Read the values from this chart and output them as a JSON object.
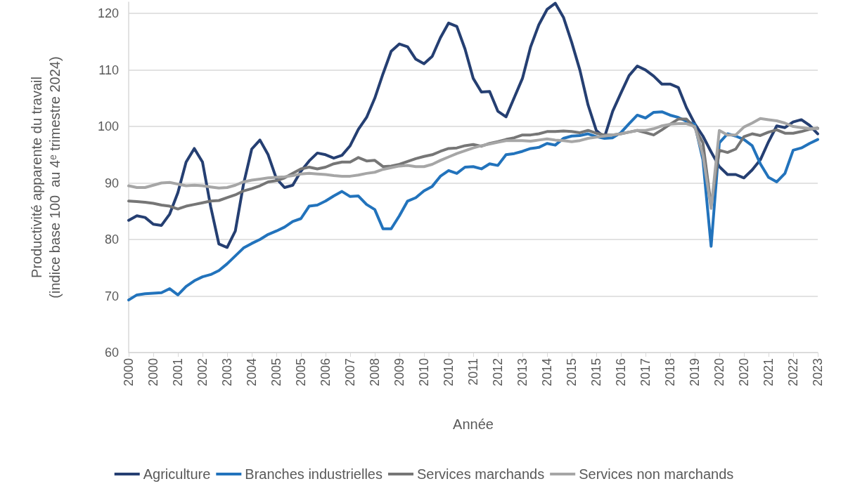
{
  "chart_data": {
    "type": "line",
    "xlabel": "Année",
    "ylabel": "Productivité apparente du travail\n(indice base 100  au 4ᵉ trimestre 2024)",
    "categories": [
      "2000",
      null,
      null,
      "2000",
      null,
      null,
      "2001",
      null,
      null,
      "2002",
      null,
      null,
      "2003",
      null,
      null,
      "2004",
      null,
      null,
      "2005",
      null,
      null,
      "2005",
      null,
      null,
      "2006",
      null,
      null,
      "2007",
      null,
      null,
      "2008",
      null,
      null,
      "2009",
      null,
      null,
      "2010",
      null,
      null,
      "2010",
      null,
      null,
      "2011",
      null,
      null,
      "2012",
      null,
      null,
      "2013",
      null,
      null,
      "2014",
      null,
      null,
      "2015",
      null,
      null,
      "2015",
      null,
      null,
      "2016",
      null,
      null,
      "2017",
      null,
      null,
      "2018",
      null,
      null,
      "2019",
      null,
      null,
      "2020",
      null,
      null,
      "2020",
      null,
      null,
      "2021",
      null,
      null,
      "2022",
      null,
      null,
      "2023"
    ],
    "series": [
      {
        "name": "Agriculture",
        "color": "#253f72",
        "values": [
          83.4,
          84.2,
          83.9,
          82.7,
          82.5,
          84.5,
          88.3,
          93.7,
          96.1,
          93.7,
          85.8,
          79.2,
          78.6,
          81.5,
          89.8,
          96.0,
          97.6,
          95.0,
          90.8,
          89.2,
          89.6,
          92.1,
          93.9,
          95.3,
          95.0,
          94.4,
          94.9,
          96.6,
          99.5,
          101.6,
          105.0,
          109.3,
          113.3,
          114.6,
          114.1,
          111.9,
          111.1,
          112.4,
          115.7,
          118.3,
          117.7,
          113.7,
          108.5,
          106.1,
          106.2,
          102.7,
          101.7,
          105.1,
          108.5,
          114.1,
          118.0,
          120.7,
          121.8,
          119.3,
          114.9,
          110.0,
          103.8,
          99.3,
          98.1,
          102.7,
          105.9,
          109.0,
          110.7,
          110.0,
          108.9,
          107.5,
          107.5,
          106.9,
          103.3,
          100.5,
          98.3,
          95.5,
          92.9,
          91.5,
          91.5,
          90.9,
          92.3,
          94.1,
          97.3,
          100.1,
          99.8,
          100.8,
          101.2,
          100.2,
          98.7
        ]
      },
      {
        "name": "Branches industrielles",
        "color": "#2273bc",
        "values": [
          69.3,
          70.2,
          70.4,
          70.5,
          70.6,
          71.3,
          70.2,
          71.7,
          72.7,
          73.4,
          73.8,
          74.5,
          75.7,
          77.1,
          78.5,
          79.3,
          80.0,
          80.9,
          81.5,
          82.2,
          83.2,
          83.7,
          85.9,
          86.1,
          86.8,
          87.7,
          88.5,
          87.6,
          87.7,
          86.2,
          85.3,
          81.9,
          81.9,
          84.2,
          86.8,
          87.4,
          88.6,
          89.4,
          91.2,
          92.2,
          91.7,
          92.8,
          92.9,
          92.5,
          93.4,
          93.1,
          95.0,
          95.2,
          95.6,
          96.1,
          96.3,
          97.0,
          96.7,
          97.9,
          98.3,
          98.4,
          98.7,
          98.2,
          97.9,
          98.0,
          98.9,
          100.5,
          102.0,
          101.5,
          102.5,
          102.6,
          102.0,
          101.6,
          100.9,
          100.4,
          94.1,
          78.8,
          97.1,
          98.7,
          98.3,
          97.7,
          96.6,
          93.4,
          91.0,
          90.2,
          91.7,
          95.8,
          96.2,
          97.0,
          97.7
        ]
      },
      {
        "name": "Services marchands",
        "color": "#767676",
        "values": [
          86.8,
          86.7,
          86.6,
          86.4,
          86.1,
          85.9,
          85.4,
          85.9,
          86.2,
          86.5,
          86.8,
          86.9,
          87.4,
          87.9,
          88.6,
          89.0,
          89.5,
          90.2,
          90.4,
          90.9,
          91.7,
          92.5,
          92.8,
          92.5,
          92.8,
          93.4,
          93.7,
          93.7,
          94.5,
          93.9,
          94.0,
          92.9,
          93.0,
          93.3,
          93.8,
          94.3,
          94.7,
          95.0,
          95.6,
          96.1,
          96.2,
          96.6,
          96.8,
          96.5,
          97.0,
          97.3,
          97.7,
          98.0,
          98.5,
          98.5,
          98.7,
          99.1,
          99.1,
          99.2,
          99.1,
          98.9,
          99.3,
          98.8,
          98.5,
          98.5,
          98.7,
          99.0,
          99.3,
          98.9,
          98.5,
          99.4,
          100.4,
          101.3,
          101.3,
          99.8,
          97.1,
          86.0,
          95.8,
          95.4,
          96.0,
          98.2,
          98.7,
          98.4,
          99.0,
          99.4,
          98.8,
          98.8,
          99.1,
          99.5,
          99.7
        ]
      },
      {
        "name": "Services non marchands",
        "color": "#a6a6a6",
        "values": [
          89.5,
          89.2,
          89.2,
          89.6,
          90.0,
          90.1,
          89.8,
          89.5,
          89.6,
          89.5,
          89.3,
          89.1,
          89.2,
          89.6,
          90.2,
          90.5,
          90.7,
          90.9,
          91.0,
          91.1,
          91.3,
          91.6,
          91.7,
          91.6,
          91.5,
          91.3,
          91.2,
          91.2,
          91.4,
          91.7,
          91.9,
          92.4,
          92.7,
          93.0,
          93.1,
          92.9,
          92.9,
          93.3,
          94.0,
          94.6,
          95.2,
          95.7,
          96.2,
          96.6,
          96.9,
          97.2,
          97.5,
          97.5,
          97.5,
          97.4,
          97.6,
          97.8,
          97.6,
          97.5,
          97.3,
          97.5,
          97.9,
          98.1,
          98.3,
          98.5,
          98.7,
          99.0,
          99.3,
          99.3,
          99.6,
          100.1,
          100.4,
          100.5,
          100.5,
          100.0,
          94.9,
          85.5,
          99.3,
          98.5,
          98.5,
          99.9,
          100.6,
          101.4,
          101.2,
          101.0,
          100.6,
          100.0,
          99.8,
          99.6,
          99.6
        ]
      }
    ],
    "ylim": [
      60,
      122
    ],
    "yticks": [
      60,
      70,
      80,
      90,
      100,
      110,
      120
    ],
    "grid": "y",
    "legend": "bottom",
    "marker": "none",
    "line_style": "solid"
  }
}
